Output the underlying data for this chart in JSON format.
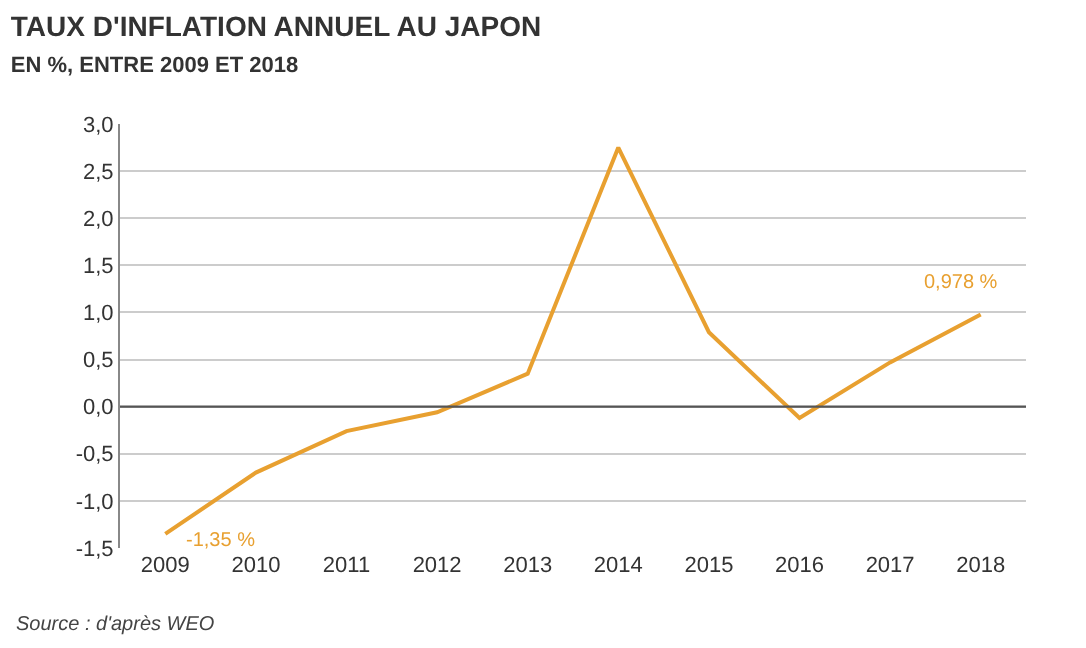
{
  "chart_data": {
    "type": "line",
    "title": "TAUX D'INFLATION ANNUEL AU JAPON",
    "subtitle": "EN %, ENTRE 2009 ET 2018",
    "categories": [
      "2009",
      "2010",
      "2011",
      "2012",
      "2013",
      "2014",
      "2015",
      "2016",
      "2017",
      "2018"
    ],
    "series": [
      {
        "color": "#e8a030",
        "values": [
          -1.35,
          -0.7,
          -0.26,
          -0.06,
          0.35,
          2.75,
          0.79,
          -0.12,
          0.47,
          0.978
        ]
      }
    ],
    "ylim": [
      -1.5,
      3.0
    ],
    "yticks": [
      {
        "value": -1.5,
        "label": "-1,5"
      },
      {
        "value": -1.0,
        "label": "-1,0"
      },
      {
        "value": -0.5,
        "label": "-0,5"
      },
      {
        "value": 0,
        "label": "0,0"
      },
      {
        "value": 0.5,
        "label": "0,5"
      },
      {
        "value": 1.0,
        "label": "1,0"
      },
      {
        "value": 1.5,
        "label": "1,5"
      },
      {
        "value": 2.0,
        "label": "2,0"
      },
      {
        "value": 2.5,
        "label": "2,5"
      },
      {
        "value": 3.0,
        "label": "3,0"
      }
    ],
    "grid": "y",
    "marker": "none",
    "line_style": "solid",
    "ref_lines": [
      {
        "axis": "y",
        "value": 0,
        "color": "#555555"
      }
    ],
    "annotations": [
      {
        "text": "-1,35 %",
        "x": "2009",
        "y": -1.35
      },
      {
        "text": "0,978 %",
        "x": "2018",
        "y": 0.978
      },
      "Source : d'après WEO"
    ]
  }
}
